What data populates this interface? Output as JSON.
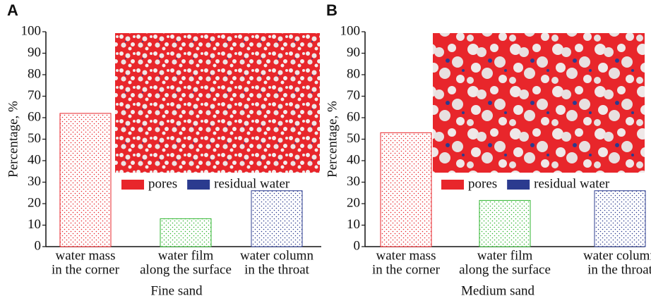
{
  "chart_data": [
    {
      "type": "bar",
      "panel_label": "A",
      "ylabel": "Percentage, %",
      "xlabel": "Fine sand",
      "categories": [
        [
          "water mass",
          "in the corner"
        ],
        [
          "water film",
          "along the surface"
        ],
        [
          "water column",
          "in the throat"
        ]
      ],
      "values": [
        62,
        13,
        26
      ],
      "colors": [
        "#e8262b",
        "#2fb52f",
        "#2b3b8f"
      ],
      "ylim": [
        0,
        100
      ],
      "yticks": [
        0,
        10,
        20,
        30,
        40,
        50,
        60,
        70,
        80,
        90,
        100
      ],
      "inset_legend": [
        {
          "label": "pores",
          "color": "#e8262b"
        },
        {
          "label": "residual water",
          "color": "#2b3b8f"
        }
      ]
    },
    {
      "type": "bar",
      "panel_label": "B",
      "ylabel": "Percentage, %",
      "xlabel": "Medium sand",
      "categories": [
        [
          "water mass",
          "in the corner"
        ],
        [
          "water film",
          "along the surface"
        ],
        [
          "water column",
          "in the throat"
        ]
      ],
      "values": [
        53,
        21.5,
        26
      ],
      "colors": [
        "#e8262b",
        "#2fb52f",
        "#2b3b8f"
      ],
      "ylim": [
        0,
        100
      ],
      "yticks": [
        0,
        10,
        20,
        30,
        40,
        50,
        60,
        70,
        80,
        90,
        100
      ],
      "inset_legend": [
        {
          "label": "pores",
          "color": "#e8262b"
        },
        {
          "label": "residual water",
          "color": "#2b3b8f"
        }
      ]
    }
  ]
}
